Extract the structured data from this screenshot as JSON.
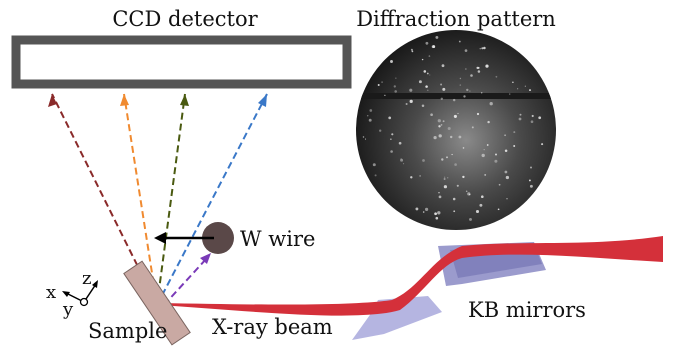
{
  "labels": {
    "ccd_detector": "CCD detector",
    "diffraction_pattern": "Diffraction pattern",
    "w_wire": "W wire",
    "kb_mirrors": "KB mirrors",
    "xray_beam": "X-ray beam",
    "sample": "Sample"
  },
  "axes": {
    "x": "x",
    "y": "y",
    "z": "z"
  },
  "colors": {
    "detector_frame": "#555555",
    "beam": "#d4303a",
    "ray_dark_red": "#8a2a2a",
    "ray_orange": "#f08a30",
    "ray_olive": "#4a5a10",
    "ray_blue": "#3a78c8",
    "ray_purple": "#7a3ab8",
    "sample": "#c9a9a3",
    "wire": "#5a4848",
    "mirror": "#9a9ad0"
  }
}
